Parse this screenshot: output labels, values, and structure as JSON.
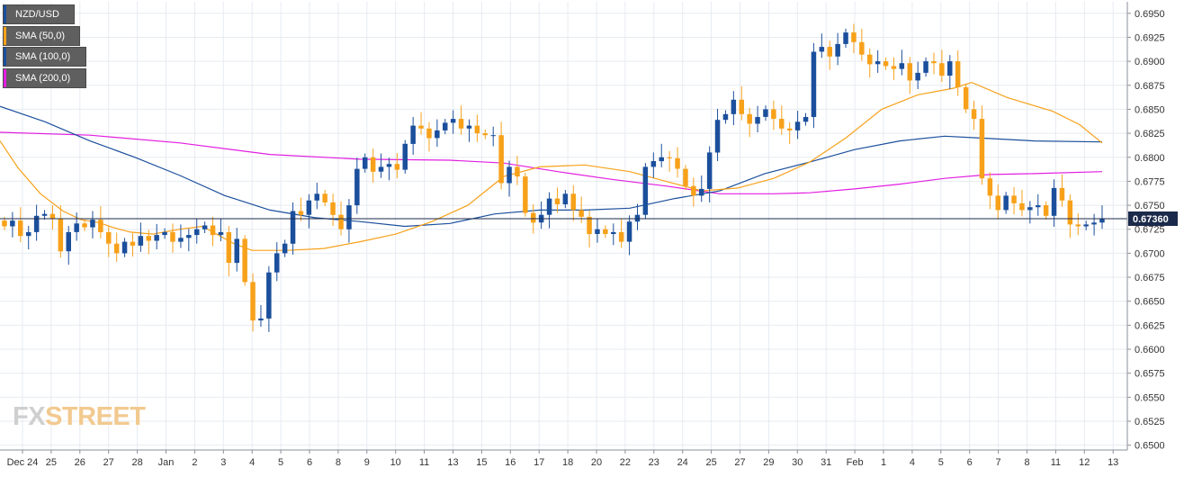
{
  "chart_data": {
    "type": "candlestick",
    "symbol": "NZD/USD",
    "last_price": "0.67360",
    "y_axis": {
      "ticks": [
        "0.6950",
        "0.6925",
        "0.6900",
        "0.6875",
        "0.6850",
        "0.6825",
        "0.6800",
        "0.6775",
        "0.6750",
        "0.6725",
        "0.6700",
        "0.6675",
        "0.6650",
        "0.6625",
        "0.6600",
        "0.6575",
        "0.6550",
        "0.6525",
        "0.6500"
      ],
      "min": 0.6495,
      "max": 0.6962
    },
    "x_axis": {
      "ticks": [
        "Dec 24",
        "25",
        "26",
        "27",
        "28",
        "Jan",
        "2",
        "3",
        "4",
        "5",
        "6",
        "8",
        "9",
        "10",
        "11",
        "13",
        "15",
        "16",
        "17",
        "18",
        "20",
        "22",
        "23",
        "24",
        "25",
        "27",
        "29",
        "30",
        "31",
        "Feb",
        "1",
        "4",
        "5",
        "6",
        "7",
        "8",
        "11",
        "12",
        "13"
      ]
    },
    "legend": [
      {
        "label": "NZD/USD",
        "color": "#1b4f9c"
      },
      {
        "label": "SMA (50,0)",
        "color": "#f7a11a"
      },
      {
        "label": "SMA (100,0)",
        "color": "#1b4f9c"
      },
      {
        "label": "SMA (200,0)",
        "color": "#e21ee0"
      }
    ],
    "colors": {
      "up": "#1b4f9c",
      "down": "#f7a11a",
      "sma50": "#f7a11a",
      "sma100": "#1b4f9c",
      "sma200": "#e21ee0",
      "price_line": "#1b2a4a"
    },
    "closes": [
      0.6728,
      0.6734,
      0.6718,
      0.6722,
      0.6739,
      0.6741,
      0.6736,
      0.6702,
      0.6722,
      0.6731,
      0.6727,
      0.6735,
      0.6722,
      0.671,
      0.67,
      0.6712,
      0.6708,
      0.6718,
      0.6713,
      0.6719,
      0.6722,
      0.6712,
      0.6716,
      0.6719,
      0.6725,
      0.6729,
      0.6719,
      0.6722,
      0.669,
      0.6715,
      0.667,
      0.663,
      0.6632,
      0.668,
      0.67,
      0.671,
      0.6744,
      0.674,
      0.6755,
      0.6762,
      0.6753,
      0.674,
      0.6725,
      0.675,
      0.6788,
      0.68,
      0.6785,
      0.679,
      0.6793,
      0.6787,
      0.6814,
      0.6833,
      0.683,
      0.682,
      0.6828,
      0.6836,
      0.684,
      0.683,
      0.6833,
      0.6825,
      0.6823,
      0.6823,
      0.6773,
      0.679,
      0.678,
      0.6742,
      0.6732,
      0.674,
      0.6757,
      0.6751,
      0.6762,
      0.6745,
      0.6738,
      0.672,
      0.6725,
      0.672,
      0.6722,
      0.6712,
      0.6733,
      0.674,
      0.679,
      0.6796,
      0.68,
      0.6799,
      0.6788,
      0.677,
      0.676,
      0.6767,
      0.6805,
      0.6839,
      0.6845,
      0.686,
      0.6845,
      0.6835,
      0.6842,
      0.685,
      0.684,
      0.683,
      0.6828,
      0.6837,
      0.6842,
      0.691,
      0.6915,
      0.6905,
      0.6918,
      0.693,
      0.692,
      0.6907,
      0.6897,
      0.69,
      0.6895,
      0.6892,
      0.6898,
      0.688,
      0.6888,
      0.69,
      0.6898,
      0.6885,
      0.69,
      0.6873,
      0.685,
      0.684,
      0.6778,
      0.676,
      0.6745,
      0.676,
      0.6752,
      0.6745,
      0.6748,
      0.675,
      0.6739,
      0.6768,
      0.6755,
      0.673,
      0.6728,
      0.673,
      0.6732,
      0.6736
    ],
    "sma50": [
      [
        0,
        0.6817
      ],
      [
        20,
        0.6789
      ],
      [
        45,
        0.6762
      ],
      [
        70,
        0.6744
      ],
      [
        90,
        0.6735
      ],
      [
        110,
        0.6732
      ],
      [
        125,
        0.6727
      ],
      [
        145,
        0.6722
      ],
      [
        170,
        0.672
      ],
      [
        200,
        0.6725
      ],
      [
        225,
        0.6728
      ],
      [
        260,
        0.671
      ],
      [
        280,
        0.6703
      ],
      [
        320,
        0.6703
      ],
      [
        360,
        0.6705
      ],
      [
        400,
        0.6712
      ],
      [
        440,
        0.672
      ],
      [
        480,
        0.6733
      ],
      [
        520,
        0.675
      ],
      [
        560,
        0.678
      ],
      [
        600,
        0.679
      ],
      [
        650,
        0.6792
      ],
      [
        700,
        0.6785
      ],
      [
        740,
        0.6775
      ],
      [
        780,
        0.6765
      ],
      [
        820,
        0.6768
      ],
      [
        860,
        0.6778
      ],
      [
        900,
        0.6795
      ],
      [
        940,
        0.682
      ],
      [
        980,
        0.685
      ],
      [
        1020,
        0.6865
      ],
      [
        1060,
        0.6872
      ],
      [
        1080,
        0.6878
      ],
      [
        1120,
        0.6862
      ],
      [
        1170,
        0.6848
      ],
      [
        1200,
        0.6834
      ],
      [
        1225,
        0.6815
      ]
    ],
    "sma100": [
      [
        0,
        0.6853
      ],
      [
        50,
        0.6837
      ],
      [
        100,
        0.6817
      ],
      [
        150,
        0.68
      ],
      [
        200,
        0.6781
      ],
      [
        250,
        0.676
      ],
      [
        300,
        0.6745
      ],
      [
        350,
        0.6737
      ],
      [
        400,
        0.6733
      ],
      [
        450,
        0.6728
      ],
      [
        500,
        0.6731
      ],
      [
        550,
        0.6741
      ],
      [
        600,
        0.6745
      ],
      [
        650,
        0.6745
      ],
      [
        700,
        0.6747
      ],
      [
        750,
        0.6757
      ],
      [
        800,
        0.6765
      ],
      [
        850,
        0.6783
      ],
      [
        900,
        0.6795
      ],
      [
        950,
        0.6808
      ],
      [
        1000,
        0.6817
      ],
      [
        1050,
        0.6822
      ],
      [
        1090,
        0.682
      ],
      [
        1150,
        0.6817
      ],
      [
        1225,
        0.6816
      ]
    ],
    "sma200": [
      [
        0,
        0.6826
      ],
      [
        100,
        0.6823
      ],
      [
        200,
        0.6815
      ],
      [
        300,
        0.6803
      ],
      [
        400,
        0.6798
      ],
      [
        500,
        0.6797
      ],
      [
        560,
        0.6794
      ],
      [
        620,
        0.6785
      ],
      [
        680,
        0.6777
      ],
      [
        740,
        0.677
      ],
      [
        800,
        0.6762
      ],
      [
        860,
        0.6762
      ],
      [
        900,
        0.6763
      ],
      [
        950,
        0.6767
      ],
      [
        1000,
        0.6772
      ],
      [
        1050,
        0.6778
      ],
      [
        1100,
        0.6782
      ],
      [
        1150,
        0.6783
      ],
      [
        1225,
        0.6785
      ]
    ]
  },
  "logo": {
    "fx": "FX",
    "street": "STREET"
  }
}
